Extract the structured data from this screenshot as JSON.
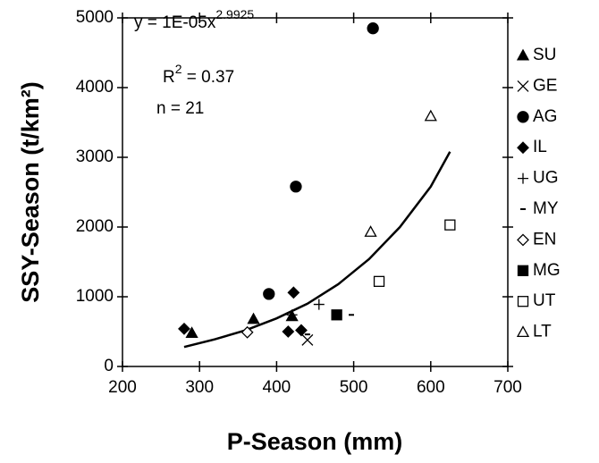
{
  "chart_data": {
    "type": "scatter",
    "x_label": "P-Season (mm)",
    "y_label": "SSY-Season (t/km²)",
    "xlim": [
      200,
      700
    ],
    "xticks": [
      200,
      300,
      400,
      500,
      600,
      700
    ],
    "ylim": [
      0,
      5000
    ],
    "yticks": [
      0,
      1000,
      2000,
      3000,
      4000,
      5000
    ],
    "annotations": [
      {
        "text": "y = 1E-05x",
        "sup": "2.9925"
      },
      {
        "text": "R",
        "sup": "2",
        "after": " = 0.37"
      },
      {
        "text": "n = 21"
      }
    ],
    "series": [
      {
        "name": "SU",
        "color": "#000000",
        "marker": "triangle-filled",
        "x": [
          290,
          370,
          420
        ],
        "values": [
          480,
          680,
          720
        ]
      },
      {
        "name": "GE",
        "color": "#000000",
        "marker": "x",
        "x": [
          440
        ],
        "values": [
          380
        ]
      },
      {
        "name": "AG",
        "color": "#000000",
        "marker": "circle-filled",
        "x": [
          390,
          425,
          525
        ],
        "values": [
          1040,
          2580,
          4850
        ]
      },
      {
        "name": "IL",
        "color": "#000000",
        "marker": "diamond-filled",
        "x": [
          280,
          415,
          422,
          432
        ],
        "values": [
          540,
          500,
          1060,
          520
        ]
      },
      {
        "name": "UG",
        "color": "#000000",
        "marker": "plus",
        "x": [
          420,
          455
        ],
        "values": [
          740,
          890
        ]
      },
      {
        "name": "MY",
        "color": "#000000",
        "marker": "dash",
        "x": [
          440,
          497
        ],
        "values": [
          460,
          740
        ]
      },
      {
        "name": "EN",
        "color": "#000000",
        "marker": "diamond-open",
        "x": [
          362
        ],
        "values": [
          490
        ]
      },
      {
        "name": "MG",
        "color": "#000000",
        "marker": "square-filled",
        "x": [
          478
        ],
        "values": [
          740
        ]
      },
      {
        "name": "UT",
        "color": "#000000",
        "marker": "square-open",
        "x": [
          533,
          625
        ],
        "values": [
          1220,
          2030
        ]
      },
      {
        "name": "LT",
        "color": "#000000",
        "marker": "triangle-open",
        "x": [
          522,
          600
        ],
        "values": [
          1930,
          3590
        ]
      }
    ],
    "trendline": {
      "color": "#000000",
      "x": [
        280,
        320,
        360,
        400,
        440,
        480,
        520,
        560,
        600,
        625
      ],
      "values": [
        280,
        390,
        520,
        690,
        900,
        1180,
        1540,
        2000,
        2580,
        3080
      ]
    }
  }
}
